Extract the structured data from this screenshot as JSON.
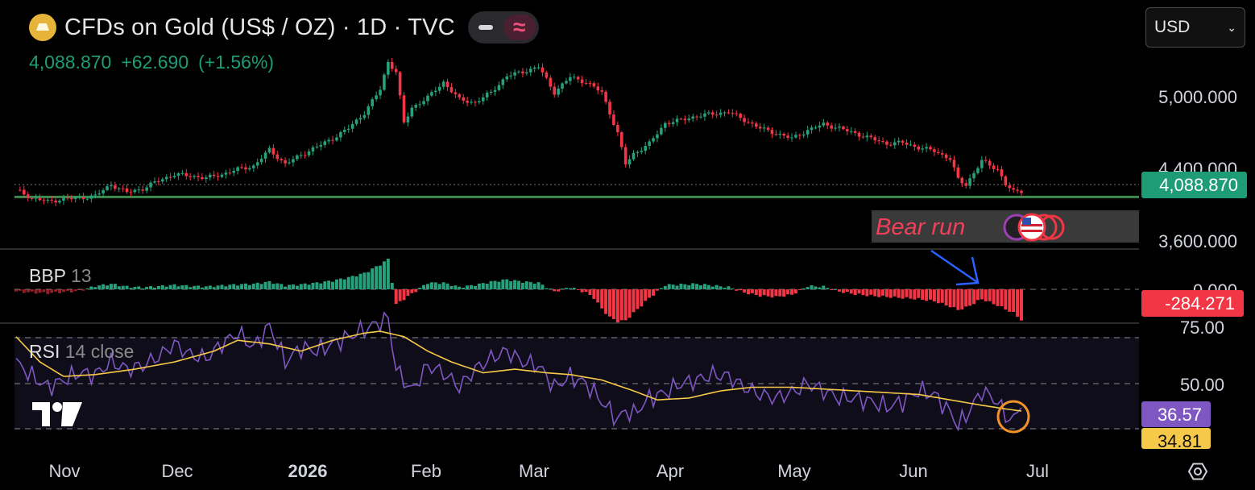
{
  "header": {
    "title": "CFDs on Gold (US$ / OZ) · 1D · TVC",
    "last": "4,088.870",
    "change": "+62.690",
    "change_pct": "(+1.56%)",
    "currency": "USD"
  },
  "colors": {
    "up": "#26a17b",
    "down": "#f23645",
    "ma": "#f7c948",
    "rsi": "#7e57c2",
    "blue_arrow": "#2962ff",
    "circle": "#f0932b"
  },
  "chart_data": [
    {
      "type": "candlestick",
      "title": "CFDs on Gold (US$ / OZ) · 1D · TVC",
      "price_labels": [
        "5,000.000",
        "4,400.000",
        "3,600.000"
      ],
      "last_price_label": "4,088.870",
      "x_labels": [
        "Nov",
        "Dec",
        "2026",
        "Feb",
        "Mar",
        "Apr",
        "May",
        "Jun",
        "Jul"
      ],
      "annotation": "Bear run",
      "horizontal_level": 4030,
      "close_path": [
        [
          0,
          4100
        ],
        [
          4,
          4020
        ],
        [
          8,
          3985
        ],
        [
          12,
          4010
        ],
        [
          16,
          4020
        ],
        [
          20,
          4040
        ],
        [
          24,
          4150
        ],
        [
          28,
          4075
        ],
        [
          32,
          4110
        ],
        [
          36,
          4190
        ],
        [
          40,
          4250
        ],
        [
          44,
          4235
        ],
        [
          48,
          4215
        ],
        [
          52,
          4250
        ],
        [
          56,
          4300
        ],
        [
          60,
          4330
        ],
        [
          64,
          4490
        ],
        [
          68,
          4350
        ],
        [
          72,
          4440
        ],
        [
          76,
          4520
        ],
        [
          80,
          4600
        ],
        [
          84,
          4700
        ],
        [
          88,
          4850
        ],
        [
          92,
          5080
        ],
        [
          94,
          5350
        ],
        [
          96,
          5250
        ],
        [
          98,
          4750
        ],
        [
          100,
          4900
        ],
        [
          104,
          5000
        ],
        [
          108,
          5150
        ],
        [
          112,
          4980
        ],
        [
          116,
          4950
        ],
        [
          120,
          5050
        ],
        [
          124,
          5210
        ],
        [
          128,
          5250
        ],
        [
          132,
          5300
        ],
        [
          136,
          5050
        ],
        [
          140,
          5200
        ],
        [
          144,
          5150
        ],
        [
          148,
          5050
        ],
        [
          152,
          4650
        ],
        [
          154,
          4350
        ],
        [
          156,
          4450
        ],
        [
          160,
          4550
        ],
        [
          164,
          4750
        ],
        [
          168,
          4780
        ],
        [
          172,
          4820
        ],
        [
          176,
          4840
        ],
        [
          180,
          4860
        ],
        [
          184,
          4780
        ],
        [
          188,
          4700
        ],
        [
          192,
          4650
        ],
        [
          196,
          4600
        ],
        [
          200,
          4680
        ],
        [
          204,
          4740
        ],
        [
          208,
          4700
        ],
        [
          212,
          4650
        ],
        [
          216,
          4600
        ],
        [
          220,
          4550
        ],
        [
          224,
          4560
        ],
        [
          228,
          4510
        ],
        [
          232,
          4480
        ],
        [
          236,
          4400
        ],
        [
          238,
          4200
        ],
        [
          240,
          4150
        ],
        [
          244,
          4380
        ],
        [
          248,
          4300
        ],
        [
          250,
          4150
        ],
        [
          252,
          4080
        ],
        [
          254,
          4089
        ]
      ]
    },
    {
      "type": "bar",
      "title": "BBP 13",
      "value_label": "-284.271",
      "zero_label": "0.000",
      "bars": [
        [
          0,
          -20
        ],
        [
          4,
          -30
        ],
        [
          8,
          -35
        ],
        [
          12,
          -25
        ],
        [
          16,
          -15
        ],
        [
          20,
          30
        ],
        [
          24,
          50
        ],
        [
          28,
          25
        ],
        [
          32,
          18
        ],
        [
          36,
          28
        ],
        [
          40,
          40
        ],
        [
          44,
          30
        ],
        [
          48,
          25
        ],
        [
          52,
          35
        ],
        [
          56,
          45
        ],
        [
          60,
          50
        ],
        [
          64,
          70
        ],
        [
          68,
          35
        ],
        [
          72,
          45
        ],
        [
          76,
          60
        ],
        [
          80,
          80
        ],
        [
          84,
          110
        ],
        [
          88,
          150
        ],
        [
          92,
          230
        ],
        [
          94,
          280
        ],
        [
          96,
          -140
        ],
        [
          100,
          -40
        ],
        [
          104,
          60
        ],
        [
          108,
          60
        ],
        [
          112,
          20
        ],
        [
          116,
          40
        ],
        [
          120,
          70
        ],
        [
          124,
          90
        ],
        [
          128,
          70
        ],
        [
          132,
          60
        ],
        [
          136,
          -20
        ],
        [
          140,
          20
        ],
        [
          144,
          -30
        ],
        [
          146,
          -80
        ],
        [
          148,
          -180
        ],
        [
          150,
          -260
        ],
        [
          152,
          -300
        ],
        [
          154,
          -290
        ],
        [
          156,
          -220
        ],
        [
          158,
          -150
        ],
        [
          160,
          -80
        ],
        [
          164,
          40
        ],
        [
          168,
          45
        ],
        [
          172,
          50
        ],
        [
          176,
          35
        ],
        [
          180,
          20
        ],
        [
          184,
          -30
        ],
        [
          188,
          -60
        ],
        [
          192,
          -70
        ],
        [
          196,
          -50
        ],
        [
          200,
          30
        ],
        [
          204,
          25
        ],
        [
          208,
          -20
        ],
        [
          212,
          -45
        ],
        [
          216,
          -60
        ],
        [
          220,
          -70
        ],
        [
          224,
          -80
        ],
        [
          228,
          -90
        ],
        [
          232,
          -110
        ],
        [
          236,
          -160
        ],
        [
          238,
          -190
        ],
        [
          240,
          -170
        ],
        [
          244,
          -90
        ],
        [
          248,
          -150
        ],
        [
          252,
          -220
        ],
        [
          254,
          -284
        ]
      ]
    },
    {
      "type": "line",
      "title": "RSI 14 close",
      "levels": [
        "75.00",
        "50.00"
      ],
      "rsi_label": "36.57",
      "ma_label": "34.81",
      "ylim": [
        24,
        80
      ],
      "series": [
        {
          "name": "RSI",
          "points": [
            [
              0,
              62
            ],
            [
              4,
              54
            ],
            [
              8,
              48
            ],
            [
              12,
              52
            ],
            [
              16,
              56
            ],
            [
              20,
              55
            ],
            [
              24,
              62
            ],
            [
              28,
              58
            ],
            [
              32,
              60
            ],
            [
              36,
              65
            ],
            [
              40,
              72
            ],
            [
              44,
              66
            ],
            [
              48,
              64
            ],
            [
              52,
              72
            ],
            [
              56,
              78
            ],
            [
              60,
              70
            ],
            [
              64,
              82
            ],
            [
              68,
              62
            ],
            [
              72,
              70
            ],
            [
              76,
              68
            ],
            [
              80,
              72
            ],
            [
              84,
              76
            ],
            [
              88,
              80
            ],
            [
              92,
              84
            ],
            [
              94,
              86
            ],
            [
              96,
              58
            ],
            [
              100,
              46
            ],
            [
              104,
              60
            ],
            [
              108,
              56
            ],
            [
              112,
              48
            ],
            [
              116,
              58
            ],
            [
              120,
              64
            ],
            [
              124,
              68
            ],
            [
              128,
              62
            ],
            [
              132,
              60
            ],
            [
              136,
              48
            ],
            [
              140,
              54
            ],
            [
              144,
              50
            ],
            [
              148,
              40
            ],
            [
              152,
              30
            ],
            [
              154,
              35
            ],
            [
              156,
              33
            ],
            [
              160,
              42
            ],
            [
              164,
              45
            ],
            [
              168,
              50
            ],
            [
              172,
              52
            ],
            [
              176,
              55
            ],
            [
              180,
              54
            ],
            [
              184,
              48
            ],
            [
              188,
              44
            ],
            [
              192,
              42
            ],
            [
              196,
              45
            ],
            [
              200,
              50
            ],
            [
              204,
              46
            ],
            [
              208,
              42
            ],
            [
              212,
              42
            ],
            [
              216,
              40
            ],
            [
              220,
              37
            ],
            [
              224,
              40
            ],
            [
              228,
              46
            ],
            [
              232,
              44
            ],
            [
              236,
              34
            ],
            [
              238,
              27
            ],
            [
              240,
              32
            ],
            [
              244,
              46
            ],
            [
              248,
              40
            ],
            [
              250,
              32
            ],
            [
              252,
              30
            ],
            [
              254,
              36.57
            ]
          ]
        },
        {
          "name": "MA",
          "points": [
            [
              0,
              76
            ],
            [
              6,
              62
            ],
            [
              12,
              54
            ],
            [
              20,
              55
            ],
            [
              30,
              58
            ],
            [
              40,
              62
            ],
            [
              50,
              68
            ],
            [
              56,
              74
            ],
            [
              64,
              72
            ],
            [
              72,
              68
            ],
            [
              80,
              74
            ],
            [
              88,
              78
            ],
            [
              92,
              79
            ],
            [
              98,
              76
            ],
            [
              104,
              68
            ],
            [
              110,
              62
            ],
            [
              118,
              56
            ],
            [
              126,
              58
            ],
            [
              134,
              56
            ],
            [
              140,
              55
            ],
            [
              148,
              52
            ],
            [
              156,
              46
            ],
            [
              162,
              41
            ],
            [
              170,
              42
            ],
            [
              178,
              46
            ],
            [
              186,
              48
            ],
            [
              196,
              48
            ],
            [
              204,
              47
            ],
            [
              212,
              46
            ],
            [
              220,
              45
            ],
            [
              228,
              44
            ],
            [
              236,
              41
            ],
            [
              244,
              38
            ],
            [
              250,
              36
            ],
            [
              254,
              34.81
            ]
          ]
        }
      ]
    }
  ]
}
